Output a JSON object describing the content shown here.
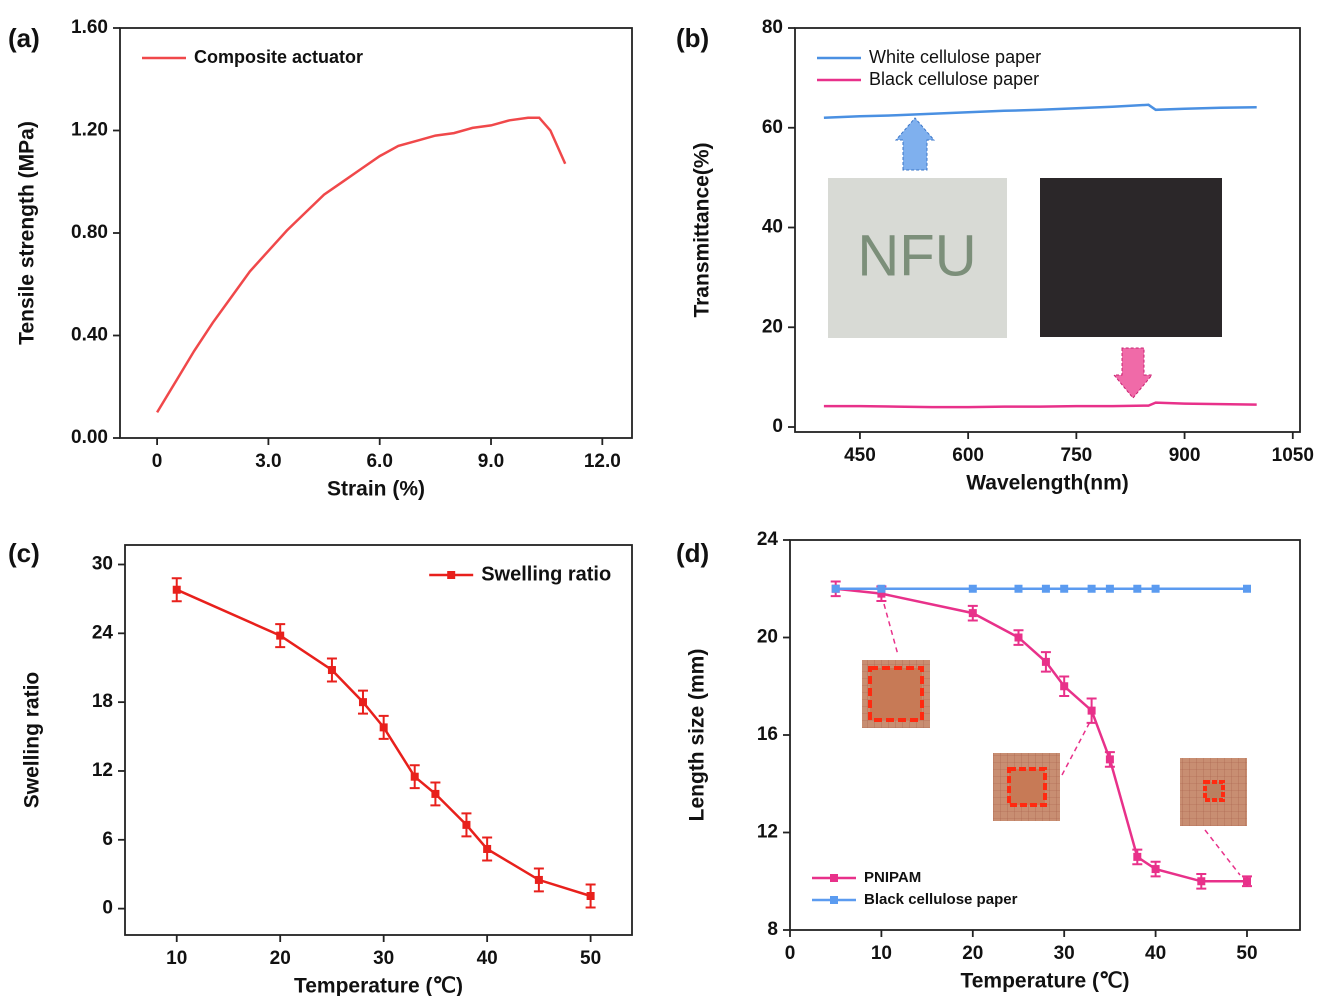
{
  "chart_data": [
    {
      "type": "line",
      "panel": "(a)",
      "xlabel": "Strain (%)",
      "ylabel": "Tensile strength  (MPa)",
      "xlim": [
        -1,
        12.8
      ],
      "ylim": [
        0,
        1.6
      ],
      "xticks": [
        0,
        {
          "value": 3,
          "label": "3.0"
        },
        {
          "value": 6,
          "label": "6.0"
        },
        {
          "value": 9,
          "label": "9.0"
        },
        {
          "value": 12,
          "label": "12.0"
        }
      ],
      "yticks": [
        {
          "value": 0,
          "label": "0.00"
        },
        {
          "value": 0.4,
          "label": "0.40"
        },
        {
          "value": 0.8,
          "label": "0.80"
        },
        {
          "value": 1.2,
          "label": "1.20"
        },
        {
          "value": 1.6,
          "label": "1.60"
        }
      ],
      "legend": "upper left",
      "series": [
        {
          "name": "Composite actuator",
          "color": "#f0484a",
          "x": [
            0,
            0.5,
            1,
            1.5,
            2,
            2.5,
            3,
            3.5,
            4,
            4.5,
            5,
            5.5,
            6,
            6.5,
            7,
            7.5,
            8,
            8.5,
            9,
            9.5,
            10,
            10.3,
            10.6,
            11
          ],
          "values": [
            0.1,
            0.22,
            0.34,
            0.45,
            0.55,
            0.65,
            0.73,
            0.81,
            0.88,
            0.95,
            1.0,
            1.05,
            1.1,
            1.14,
            1.16,
            1.18,
            1.19,
            1.21,
            1.22,
            1.24,
            1.25,
            1.25,
            1.2,
            1.07
          ]
        }
      ]
    },
    {
      "type": "line",
      "panel": "(b)",
      "xlabel": "Wavelength(nm)",
      "ylabel": "Transmittance(%)",
      "xlim": [
        360,
        1060
      ],
      "ylim": [
        -1,
        80
      ],
      "xticks": [
        450,
        600,
        750,
        900,
        1050
      ],
      "yticks": [
        0,
        20,
        40,
        60,
        80
      ],
      "legend": "upper left",
      "annotations": [
        "NFU"
      ],
      "series": [
        {
          "name": "White cellulose paper",
          "color": "#4a90e2",
          "x": [
            400,
            450,
            500,
            550,
            600,
            650,
            700,
            750,
            800,
            850,
            860,
            900,
            950,
            1000
          ],
          "values": [
            62,
            62.3,
            62.5,
            62.8,
            63.1,
            63.4,
            63.6,
            63.9,
            64.2,
            64.6,
            63.6,
            63.8,
            64,
            64.1
          ]
        },
        {
          "name": "Black cellulose paper",
          "color": "#e8318a",
          "x": [
            400,
            450,
            500,
            550,
            600,
            650,
            700,
            750,
            800,
            850,
            860,
            900,
            950,
            1000
          ],
          "values": [
            4.2,
            4.2,
            4.1,
            4.0,
            4.0,
            4.1,
            4.1,
            4.2,
            4.2,
            4.3,
            4.9,
            4.7,
            4.6,
            4.5
          ]
        }
      ]
    },
    {
      "type": "line",
      "panel": "(c)",
      "xlabel": "Temperature  (℃)",
      "ylabel": "Swelling ratio",
      "xlim": [
        5,
        54
      ],
      "ylim": [
        -2.3,
        31.7
      ],
      "xticks": [
        10,
        20,
        30,
        40,
        50
      ],
      "yticks": [
        0,
        6,
        12,
        18,
        24,
        30
      ],
      "legend": "upper right",
      "series": [
        {
          "name": "Swelling ratio",
          "color": "#e8201c",
          "marker": "square",
          "x": [
            10,
            20,
            25,
            28,
            30,
            33,
            35,
            38,
            40,
            45,
            50
          ],
          "values": [
            27.8,
            23.8,
            20.8,
            18,
            15.8,
            11.5,
            10,
            7.3,
            5.2,
            2.5,
            1.1
          ],
          "errors": [
            1,
            1,
            1,
            1,
            1,
            1,
            1,
            1,
            1,
            1,
            1
          ]
        }
      ]
    },
    {
      "type": "line",
      "panel": "(d)",
      "xlabel": "Temperature  (℃)",
      "ylabel": "Length size  (mm)",
      "xlim": [
        0,
        55.8
      ],
      "ylim": [
        8,
        24
      ],
      "xticks": [
        0,
        10,
        20,
        30,
        40,
        50
      ],
      "yticks": [
        8,
        12,
        16,
        20,
        24
      ],
      "legend": "lower left",
      "series": [
        {
          "name": "PNIPAM",
          "color": "#e8318a",
          "marker": "square",
          "x": [
            5,
            10,
            20,
            25,
            28,
            30,
            33,
            35,
            38,
            40,
            45,
            50
          ],
          "values": [
            22,
            21.8,
            21,
            20,
            19,
            18,
            17,
            15,
            11,
            10.5,
            10,
            10
          ],
          "errors": [
            0.3,
            0.3,
            0.3,
            0.3,
            0.4,
            0.4,
            0.5,
            0.3,
            0.3,
            0.3,
            0.3,
            0.2
          ]
        },
        {
          "name": "Black cellulose paper",
          "color": "#5b9bf0",
          "marker": "square",
          "x": [
            5,
            10,
            20,
            25,
            28,
            30,
            33,
            35,
            38,
            40,
            50
          ],
          "values": [
            22,
            22,
            22,
            22,
            22,
            22,
            22,
            22,
            22,
            22,
            22
          ]
        }
      ]
    }
  ]
}
